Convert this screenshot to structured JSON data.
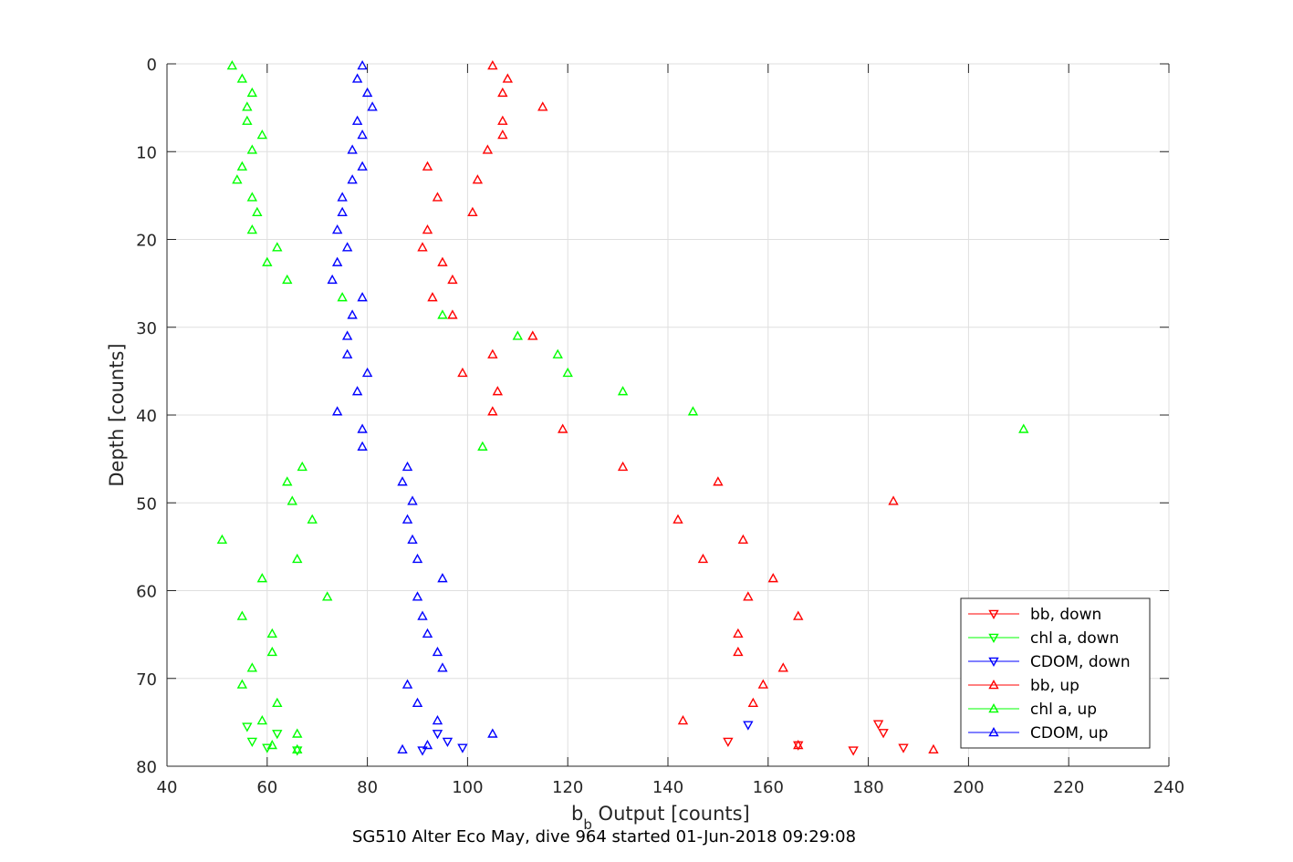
{
  "chart_data": {
    "type": "scatter",
    "xlabel_main": "b",
    "xlabel_sub": "b",
    "xlabel_rest": " Output [counts]",
    "ylabel": "Depth [counts]",
    "subtitle": "SG510 Alter Eco May, dive 964 started 01-Jun-2018 09:29:08",
    "xlim": [
      40,
      240
    ],
    "ylim": [
      0,
      80
    ],
    "y_reversed": true,
    "grid": true,
    "legend_position": "bottom-right",
    "x_ticks": [
      "40",
      "60",
      "80",
      "100",
      "120",
      "140",
      "160",
      "180",
      "200",
      "220",
      "240"
    ],
    "y_ticks": [
      "0",
      "10",
      "20",
      "30",
      "40",
      "50",
      "60",
      "70",
      "80"
    ],
    "series": [
      {
        "name": "bb, down",
        "color": "#ff0000",
        "marker": "triangle-down",
        "points": [
          [
            182,
            75.2
          ],
          [
            183,
            76.2
          ],
          [
            152,
            77.2
          ],
          [
            187,
            77.9
          ],
          [
            177,
            78.2
          ],
          [
            166,
            77.6
          ]
        ]
      },
      {
        "name": "chl a, down",
        "color": "#00ff00",
        "marker": "triangle-down",
        "points": [
          [
            56,
            75.5
          ],
          [
            57,
            77.2
          ],
          [
            60,
            77.9
          ],
          [
            66,
            78.2
          ],
          [
            62,
            76.3
          ]
        ]
      },
      {
        "name": "CDOM, down",
        "color": "#0000ff",
        "marker": "triangle-down",
        "points": [
          [
            156,
            75.3
          ],
          [
            96,
            77.2
          ],
          [
            99,
            77.9
          ],
          [
            91,
            78.2
          ],
          [
            94,
            76.3
          ]
        ]
      },
      {
        "name": "bb, up",
        "color": "#ff0000",
        "marker": "triangle-up",
        "points": [
          [
            105,
            0.2
          ],
          [
            108,
            1.7
          ],
          [
            107,
            3.3
          ],
          [
            115,
            4.9
          ],
          [
            107,
            6.5
          ],
          [
            107,
            8.1
          ],
          [
            104,
            9.8
          ],
          [
            92,
            11.7
          ],
          [
            102,
            13.2
          ],
          [
            94,
            15.2
          ],
          [
            101,
            16.9
          ],
          [
            92,
            18.9
          ],
          [
            91,
            20.9
          ],
          [
            95,
            22.6
          ],
          [
            97,
            24.6
          ],
          [
            93,
            26.6
          ],
          [
            97,
            28.6
          ],
          [
            113,
            31.0
          ],
          [
            105,
            33.1
          ],
          [
            99,
            35.2
          ],
          [
            106,
            37.3
          ],
          [
            105,
            39.6
          ],
          [
            119,
            41.6
          ],
          [
            131,
            45.9
          ],
          [
            150,
            47.6
          ],
          [
            185,
            49.8
          ],
          [
            142,
            51.9
          ],
          [
            155,
            54.2
          ],
          [
            147,
            56.4
          ],
          [
            161,
            58.6
          ],
          [
            156,
            60.7
          ],
          [
            166,
            62.9
          ],
          [
            154,
            64.9
          ],
          [
            154,
            67.0
          ],
          [
            163,
            68.8
          ],
          [
            159,
            70.7
          ],
          [
            157,
            72.8
          ],
          [
            143,
            74.8
          ],
          [
            166,
            77.6
          ],
          [
            193,
            78.1
          ]
        ]
      },
      {
        "name": "chl a, up",
        "color": "#00ff00",
        "marker": "triangle-up",
        "points": [
          [
            53,
            0.2
          ],
          [
            55,
            1.7
          ],
          [
            57,
            3.3
          ],
          [
            56,
            4.9
          ],
          [
            56,
            6.5
          ],
          [
            59,
            8.1
          ],
          [
            57,
            9.8
          ],
          [
            55,
            11.7
          ],
          [
            54,
            13.2
          ],
          [
            57,
            15.2
          ],
          [
            58,
            16.9
          ],
          [
            57,
            18.9
          ],
          [
            62,
            20.9
          ],
          [
            60,
            22.6
          ],
          [
            64,
            24.6
          ],
          [
            75,
            26.6
          ],
          [
            95,
            28.6
          ],
          [
            110,
            31.0
          ],
          [
            118,
            33.1
          ],
          [
            120,
            35.2
          ],
          [
            131,
            37.3
          ],
          [
            145,
            39.6
          ],
          [
            211,
            41.6
          ],
          [
            103,
            43.6
          ],
          [
            67,
            45.9
          ],
          [
            64,
            47.6
          ],
          [
            65,
            49.8
          ],
          [
            69,
            51.9
          ],
          [
            51,
            54.2
          ],
          [
            66,
            56.4
          ],
          [
            59,
            58.6
          ],
          [
            72,
            60.7
          ],
          [
            55,
            62.9
          ],
          [
            61,
            64.9
          ],
          [
            61,
            67.0
          ],
          [
            57,
            68.8
          ],
          [
            55,
            70.7
          ],
          [
            62,
            72.8
          ],
          [
            59,
            74.8
          ],
          [
            66,
            76.3
          ],
          [
            61,
            77.6
          ],
          [
            66,
            78.1
          ]
        ]
      },
      {
        "name": "CDOM, up",
        "color": "#0000ff",
        "marker": "triangle-up",
        "points": [
          [
            79,
            0.2
          ],
          [
            78,
            1.7
          ],
          [
            80,
            3.3
          ],
          [
            81,
            4.9
          ],
          [
            78,
            6.5
          ],
          [
            79,
            8.1
          ],
          [
            77,
            9.8
          ],
          [
            79,
            11.7
          ],
          [
            77,
            13.2
          ],
          [
            75,
            15.2
          ],
          [
            75,
            16.9
          ],
          [
            74,
            18.9
          ],
          [
            76,
            20.9
          ],
          [
            74,
            22.6
          ],
          [
            73,
            24.6
          ],
          [
            79,
            26.6
          ],
          [
            77,
            28.6
          ],
          [
            76,
            31.0
          ],
          [
            76,
            33.1
          ],
          [
            80,
            35.2
          ],
          [
            78,
            37.3
          ],
          [
            74,
            39.6
          ],
          [
            79,
            41.6
          ],
          [
            79,
            43.6
          ],
          [
            88,
            45.9
          ],
          [
            87,
            47.6
          ],
          [
            89,
            49.8
          ],
          [
            88,
            51.9
          ],
          [
            89,
            54.2
          ],
          [
            90,
            56.4
          ],
          [
            95,
            58.6
          ],
          [
            90,
            60.7
          ],
          [
            91,
            62.9
          ],
          [
            92,
            64.9
          ],
          [
            94,
            67.0
          ],
          [
            95,
            68.8
          ],
          [
            88,
            70.7
          ],
          [
            90,
            72.8
          ],
          [
            94,
            74.8
          ],
          [
            105,
            76.3
          ],
          [
            92,
            77.6
          ],
          [
            87,
            78.1
          ]
        ]
      }
    ]
  }
}
